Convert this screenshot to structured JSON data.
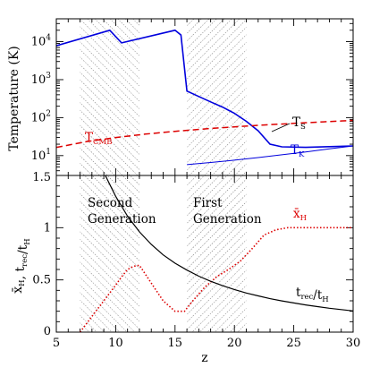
{
  "chart_data": [
    {
      "type": "line",
      "panel": "top",
      "ylabel": "Temperature (K)",
      "y_scale": "log",
      "xlim": [
        5,
        30
      ],
      "ylim": [
        3,
        40000
      ],
      "x_ticks": [
        5,
        10,
        15,
        20,
        25,
        30
      ],
      "y_ticks": [
        {
          "value": 10,
          "base": "10",
          "exp": "1"
        },
        {
          "value": 100,
          "base": "10",
          "exp": "2"
        },
        {
          "value": 1000,
          "base": "10",
          "exp": "3"
        },
        {
          "value": 10000,
          "base": "10",
          "exp": "4"
        }
      ],
      "shaded_bands": [
        {
          "x": [
            7,
            12
          ],
          "hatch": "down"
        },
        {
          "x": [
            16,
            21
          ],
          "hatch": "up"
        }
      ],
      "series": [
        {
          "name": "T_S",
          "label_base": "T",
          "label_sub": "S",
          "color": "#0000dd",
          "style": "solid",
          "width": 1.6,
          "x": [
            5,
            9.5,
            10.5,
            15,
            15.5,
            16,
            17,
            18,
            19,
            20,
            21,
            22,
            23,
            24,
            26,
            28,
            30
          ],
          "y": [
            7800,
            20000,
            9300,
            20000,
            15000,
            500,
            360,
            260,
            190,
            130,
            80,
            45,
            20,
            17,
            16.5,
            17.2,
            18
          ]
        },
        {
          "name": "T_K",
          "label_base": "T",
          "label_sub": "K",
          "color": "#0000dd",
          "style": "solid",
          "width": 1,
          "x": [
            16,
            18,
            20,
            22,
            24,
            26,
            28,
            30
          ],
          "y": [
            5.8,
            6.6,
            7.6,
            8.9,
            10.5,
            12.5,
            15,
            18
          ]
        },
        {
          "name": "T_CMB",
          "label_base": "T",
          "label_sub": "CMB",
          "color": "#dd0000",
          "style": "dashed",
          "width": 1.5,
          "x": [
            5,
            7.5,
            10,
            12.5,
            15,
            17.5,
            20,
            22.5,
            25,
            27.5,
            30
          ],
          "y": [
            16.4,
            23.2,
            30,
            36.8,
            43.6,
            50.4,
            57.2,
            64,
            70.8,
            77.6,
            84.4
          ]
        }
      ]
    },
    {
      "type": "line",
      "panel": "bottom",
      "xlabel": "z",
      "ylabel_parts": [
        {
          "base": "x̄",
          "sub": "H"
        },
        {
          "base": ", t",
          "sub": "rec"
        },
        {
          "base": "/t",
          "sub": "H"
        }
      ],
      "xlim": [
        5,
        30
      ],
      "ylim": [
        0,
        1.5
      ],
      "x_ticks": [
        5,
        10,
        15,
        20,
        25,
        30
      ],
      "y_ticks": [
        0,
        0.5,
        1,
        1.5
      ],
      "y_tick_labels": [
        "0",
        "0.5",
        "1",
        "1.5"
      ],
      "shaded_bands": [
        {
          "x": [
            7,
            12
          ],
          "hatch": "down"
        },
        {
          "x": [
            16,
            21
          ],
          "hatch": "up"
        }
      ],
      "annotations": [
        {
          "lines": [
            "Second",
            "Generation"
          ]
        },
        {
          "lines": [
            "First",
            "Generation"
          ]
        }
      ],
      "series": [
        {
          "name": "x_H",
          "label_base": "x̄",
          "label_sub": "H",
          "color": "#dd0000",
          "style": "dotted",
          "width": 1.6,
          "x": [
            7,
            8,
            9,
            10,
            10.5,
            11,
            11.5,
            12,
            13,
            14,
            15,
            15.8,
            16.5,
            17.5,
            18.5,
            19.5,
            20.5,
            21.5,
            22.5,
            23.5,
            24.5,
            25,
            27,
            30
          ],
          "y": [
            0.0,
            0.15,
            0.3,
            0.45,
            0.53,
            0.6,
            0.63,
            0.64,
            0.47,
            0.3,
            0.2,
            0.2,
            0.3,
            0.43,
            0.53,
            0.6,
            0.68,
            0.8,
            0.93,
            0.98,
            1.0,
            1.0,
            1.0,
            1.0
          ]
        },
        {
          "name": "t_rec/t_H",
          "label_parts": [
            {
              "base": "t",
              "sub": "rec"
            },
            {
              "base": "/t",
              "sub": "H"
            }
          ],
          "color": "#000000",
          "style": "solid",
          "width": 1.2,
          "x": [
            9,
            10,
            11,
            12,
            13,
            14,
            15,
            16,
            17,
            18,
            19,
            20,
            21,
            22,
            23,
            24,
            25,
            26,
            27,
            28,
            29,
            30
          ],
          "y": [
            1.53,
            1.3,
            1.11,
            0.96,
            0.84,
            0.74,
            0.66,
            0.594,
            0.536,
            0.487,
            0.445,
            0.408,
            0.375,
            0.347,
            0.321,
            0.299,
            0.279,
            0.261,
            0.244,
            0.229,
            0.216,
            0.203
          ]
        }
      ]
    }
  ]
}
